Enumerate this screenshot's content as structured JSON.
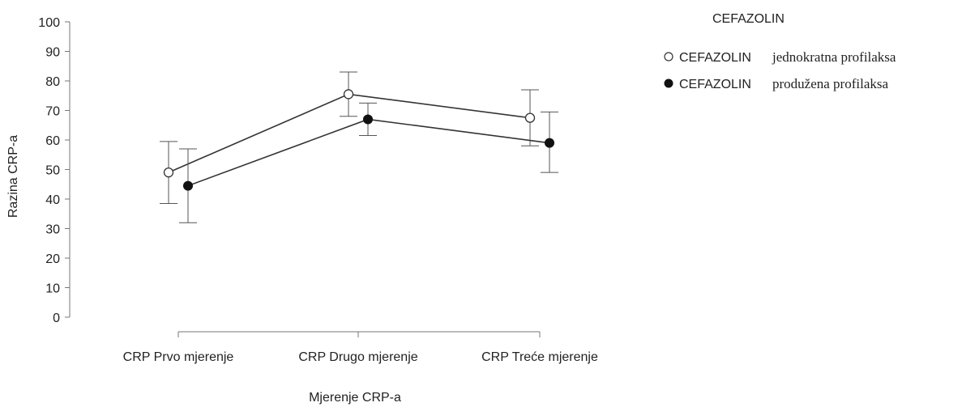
{
  "chart_data": {
    "type": "line",
    "title": "",
    "xlabel": "Mjerenje CRP-a",
    "ylabel": "Razina CRP-a",
    "categories": [
      "CRP Prvo mjerenje",
      "CRP Drugo mjerenje",
      "CRP Treće mjerenje"
    ],
    "ylim": [
      0,
      100
    ],
    "yticks": [
      0,
      10,
      20,
      30,
      40,
      50,
      60,
      70,
      80,
      90,
      100
    ],
    "grid": false,
    "legend": {
      "title": "CEFAZOLIN",
      "placement": "top-right"
    },
    "series": [
      {
        "name": "CEFAZOLIN jednokratna profilaksa",
        "name_prefix": "CEFAZOLIN",
        "name_suffix": "jednokratna profilaksa",
        "marker": "open-circle",
        "values": [
          49,
          75.5,
          67.5
        ],
        "error_low": [
          38.5,
          68,
          58
        ],
        "error_high": [
          59.5,
          83,
          77
        ]
      },
      {
        "name": "CEFAZOLIN produžena profilaksa",
        "name_prefix": "CEFAZOLIN",
        "name_suffix": "produžena profilaksa",
        "marker": "filled-circle",
        "values": [
          44.5,
          67,
          59
        ],
        "error_low": [
          32,
          61.5,
          49
        ],
        "error_high": [
          57,
          72.5,
          69.5
        ]
      }
    ]
  }
}
